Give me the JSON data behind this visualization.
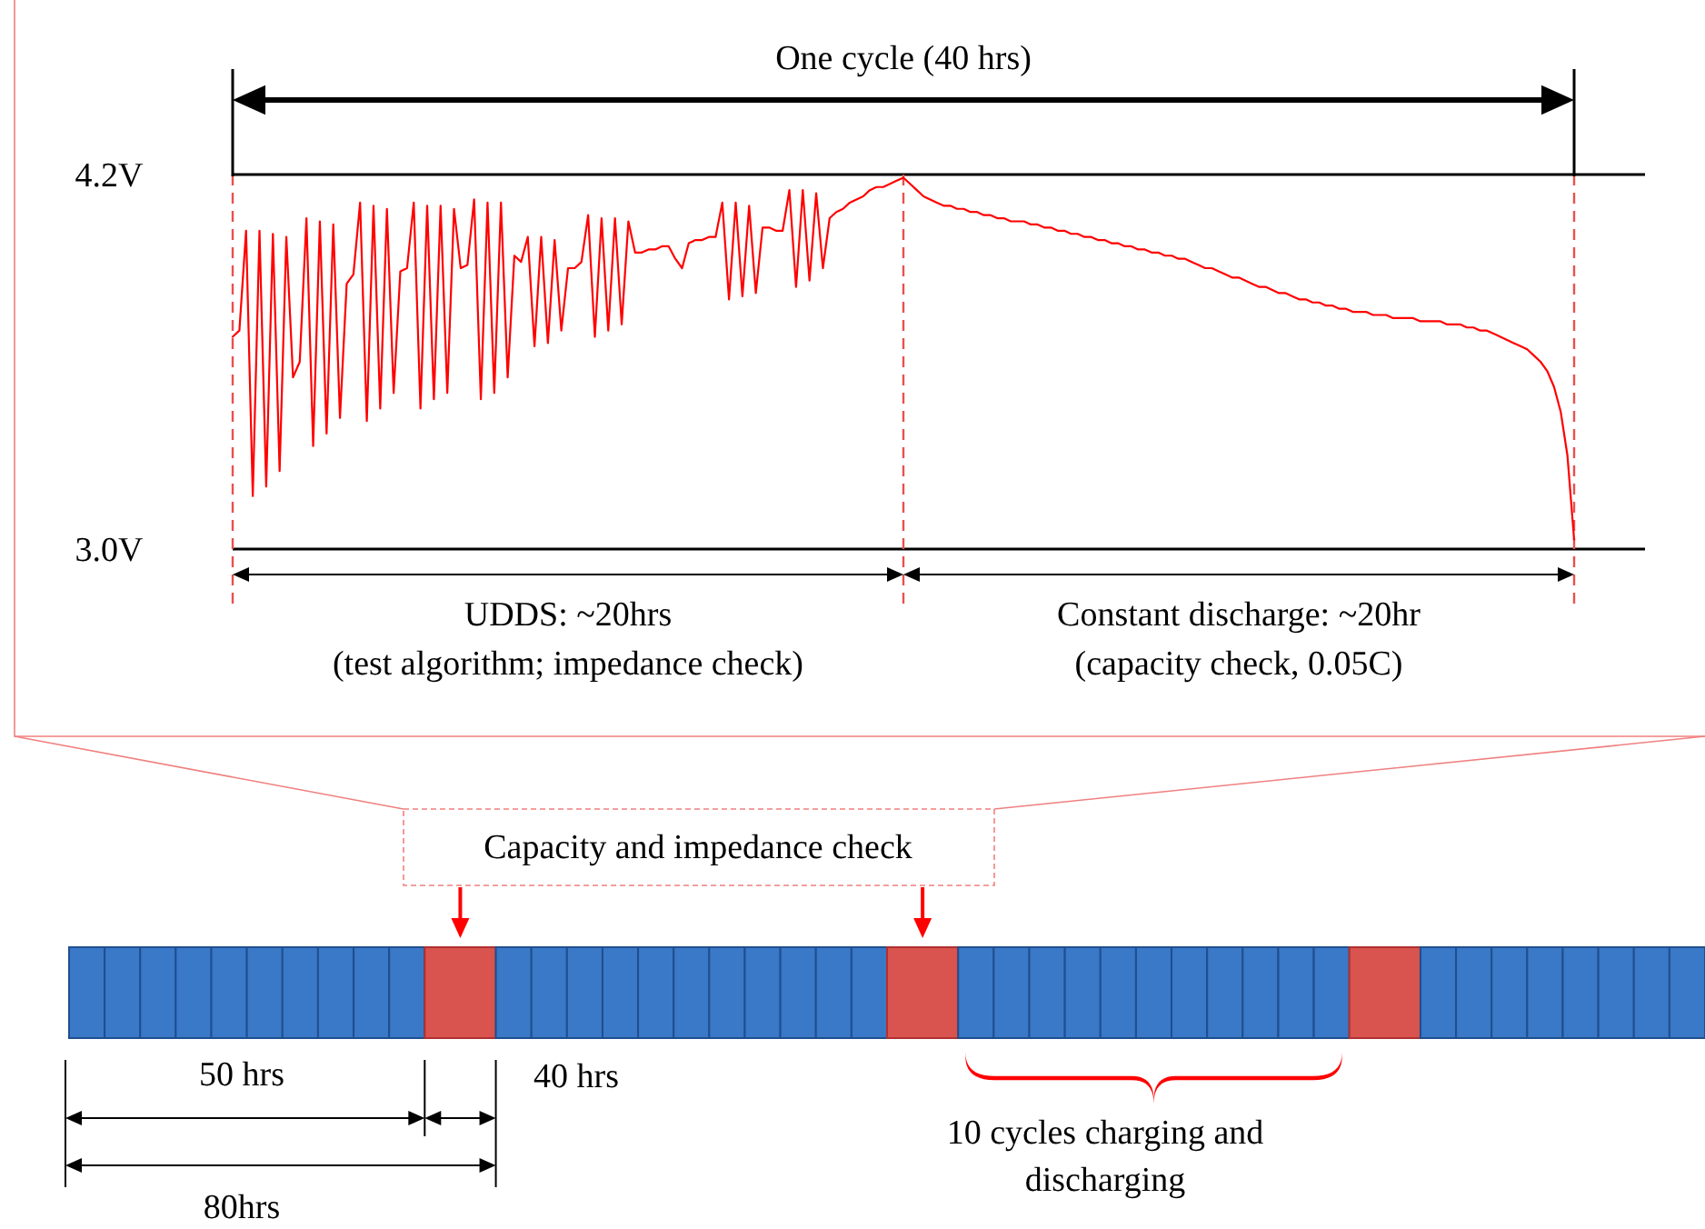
{
  "chart_data": [
    {
      "type": "line",
      "color": "#ff0000",
      "line_style": "solid",
      "ylim": [
        3.0,
        4.2
      ],
      "yticks": [
        {
          "value": 3.0,
          "label": "3.0V"
        },
        {
          "value": 4.2,
          "label": "4.2V"
        }
      ],
      "grid": "y",
      "tick_labels": "y",
      "categories": [
        null,
        null,
        null,
        null,
        null,
        null,
        null,
        null,
        null,
        null,
        null,
        null,
        null,
        null,
        null,
        null,
        null,
        null,
        null,
        null,
        null,
        null,
        null,
        null,
        null,
        null,
        null,
        null,
        null,
        null,
        null,
        null,
        null,
        null,
        null,
        null,
        null,
        null,
        null,
        null,
        null,
        null,
        null,
        null,
        null,
        null,
        null,
        null,
        null,
        null,
        null,
        null,
        null,
        null,
        null,
        null,
        null,
        null,
        null,
        null,
        null,
        null,
        null,
        null,
        null,
        null,
        null,
        null,
        null,
        null,
        null,
        null,
        null,
        null,
        null,
        null,
        null,
        null,
        null,
        null,
        null,
        null,
        null,
        null,
        null,
        null,
        null,
        null,
        null,
        null,
        null,
        null,
        null,
        null,
        null,
        null,
        null,
        null,
        null,
        null,
        null,
        null,
        null,
        null,
        null,
        null,
        null,
        null,
        null,
        null,
        null,
        null,
        null,
        null,
        null,
        null,
        null,
        null,
        null,
        null,
        null,
        null,
        null,
        null,
        null,
        null,
        null,
        null,
        null,
        null,
        null,
        null,
        null,
        null,
        null,
        null,
        null,
        null,
        null,
        null,
        null,
        null,
        null,
        null,
        null,
        null,
        null,
        null,
        null,
        null,
        null,
        null,
        null,
        null,
        null,
        null,
        null,
        null,
        null,
        null,
        null,
        null,
        null,
        null,
        null,
        null,
        null,
        null,
        null,
        null,
        null,
        null,
        null,
        null,
        null,
        null,
        null,
        null,
        null,
        null,
        null,
        null,
        null,
        null,
        null,
        null,
        null,
        null,
        null,
        null,
        null,
        null,
        null,
        null,
        null,
        null,
        null,
        null,
        null,
        null,
        null
      ],
      "values": [
        3.68,
        3.7,
        4.02,
        3.17,
        4.02,
        3.2,
        4.01,
        3.25,
        4.0,
        3.55,
        3.6,
        4.06,
        3.33,
        4.05,
        3.37,
        4.04,
        3.42,
        3.85,
        3.88,
        4.11,
        3.41,
        4.1,
        3.45,
        4.09,
        3.5,
        3.89,
        3.9,
        4.11,
        3.45,
        4.1,
        3.48,
        4.1,
        3.5,
        4.09,
        3.9,
        3.91,
        4.12,
        3.48,
        4.11,
        3.5,
        4.11,
        3.55,
        3.94,
        3.92,
        4.0,
        3.65,
        4.0,
        3.66,
        3.99,
        3.7,
        3.9,
        3.9,
        3.92,
        4.07,
        3.68,
        4.06,
        3.7,
        4.06,
        3.72,
        4.05,
        3.95,
        3.95,
        3.96,
        3.96,
        3.97,
        3.97,
        3.93,
        3.9,
        3.98,
        3.99,
        3.99,
        4.0,
        4.0,
        4.11,
        3.8,
        4.11,
        3.81,
        4.1,
        3.82,
        4.03,
        4.03,
        4.02,
        4.02,
        4.15,
        3.84,
        4.15,
        3.86,
        4.14,
        3.9,
        4.06,
        4.08,
        4.09,
        4.11,
        4.12,
        4.13,
        4.15,
        4.16,
        4.16,
        4.17,
        4.18,
        4.19,
        4.17,
        4.15,
        4.13,
        4.12,
        4.11,
        4.1,
        4.1,
        4.09,
        4.09,
        4.08,
        4.08,
        4.07,
        4.07,
        4.06,
        4.06,
        4.05,
        4.05,
        4.05,
        4.04,
        4.04,
        4.03,
        4.03,
        4.02,
        4.02,
        4.01,
        4.01,
        4.0,
        4.0,
        3.99,
        3.99,
        3.98,
        3.98,
        3.97,
        3.97,
        3.96,
        3.96,
        3.95,
        3.95,
        3.94,
        3.94,
        3.93,
        3.93,
        3.92,
        3.91,
        3.9,
        3.9,
        3.89,
        3.88,
        3.87,
        3.87,
        3.86,
        3.85,
        3.84,
        3.84,
        3.83,
        3.82,
        3.82,
        3.81,
        3.8,
        3.8,
        3.79,
        3.79,
        3.78,
        3.78,
        3.77,
        3.77,
        3.76,
        3.76,
        3.76,
        3.75,
        3.75,
        3.75,
        3.74,
        3.74,
        3.74,
        3.74,
        3.73,
        3.73,
        3.73,
        3.73,
        3.72,
        3.72,
        3.72,
        3.71,
        3.71,
        3.7,
        3.7,
        3.69,
        3.68,
        3.67,
        3.66,
        3.65,
        3.64,
        3.62,
        3.6,
        3.57,
        3.52,
        3.44,
        3.3,
        3.03
      ],
      "annotations": [
        "One cycle (40 hrs)",
        "UDDS: ~20hrs",
        "(test algorithm; impedance check)",
        "Constant discharge: ~20hr",
        "(capacity check, 0.05C)"
      ]
    },
    {
      "type": "other",
      "annotations": [
        "Capacity and impedance check",
        "50 hrs",
        "40 hrs",
        "80hrs",
        "10 cycles charging and discharging"
      ]
    }
  ]
}
